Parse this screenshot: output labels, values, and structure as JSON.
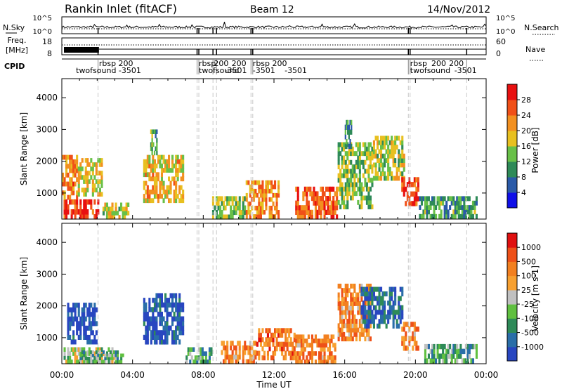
{
  "header": {
    "station": "Rankin Inlet (fitACF)",
    "beam": "Beam 12",
    "date": "14/Nov/2012"
  },
  "strip": {
    "nsky_label": "N.Sky",
    "nsearch_label": "N.Search",
    "freq_label": "Freq.",
    "freq_unit": "[MHz]",
    "nave_label": "Nave",
    "cpid_label": "CPID",
    "left_ticks_top": [
      "10^5",
      "10^0"
    ],
    "right_ticks_top": [
      "10^5",
      "10^0"
    ],
    "freq_ticks": [
      "18",
      "8"
    ],
    "nave_ticks": [
      "60",
      "0"
    ],
    "cpid_texts": [
      {
        "t": 2.1,
        "row": 0,
        "text": "rbsp 200"
      },
      {
        "t": 0.8,
        "row": 1,
        "text": "twofsound -3501"
      },
      {
        "t": 7.75,
        "row": 0,
        "text": "rbsp"
      },
      {
        "t": 8.6,
        "row": 0,
        "text": "200"
      },
      {
        "t": 9.6,
        "row": 0,
        "text": "200"
      },
      {
        "t": 10.8,
        "row": 0,
        "text": "rbsp 200"
      },
      {
        "t": 7.75,
        "row": 1,
        "text": "twofsound"
      },
      {
        "t": 9.2,
        "row": 1,
        "text": "-3501"
      },
      {
        "t": 10.8,
        "row": 1,
        "text": "-3501"
      },
      {
        "t": 12.6,
        "row": 1,
        "text": "-3501"
      },
      {
        "t": 19.7,
        "row": 0,
        "text": "rbsp"
      },
      {
        "t": 20.9,
        "row": 0,
        "text": "200"
      },
      {
        "t": 21.9,
        "row": 0,
        "text": "200"
      },
      {
        "t": 19.7,
        "row": 1,
        "text": "twofsound"
      },
      {
        "t": 22.2,
        "row": 1,
        "text": "-3501"
      }
    ],
    "cpid_changes": [
      2.05,
      7.65,
      7.75,
      8.55,
      8.75,
      10.7,
      10.8,
      19.6,
      19.7,
      22.9
    ]
  },
  "chart_data": [
    {
      "type": "heatmap",
      "name": "power",
      "ylabel": "Slant Range [km]",
      "xlabel": "",
      "xlim": [
        0,
        24
      ],
      "ylim": [
        180,
        4600
      ],
      "yticks": [
        1000,
        2000,
        3000,
        4000
      ],
      "colorbar": {
        "label": "Power [dB]",
        "ticks": [
          4,
          8,
          12,
          16,
          20,
          24,
          28
        ],
        "colors": [
          "#1010e8",
          "#2a5aa8",
          "#2e8a58",
          "#68c048",
          "#e8c020",
          "#f29020",
          "#f05018",
          "#e81010"
        ]
      },
      "echo_regions": [
        {
          "t0": 0.0,
          "t1": 2.1,
          "r0": 180,
          "r1": 800,
          "level": 0.88
        },
        {
          "t0": 0.0,
          "t1": 0.9,
          "r0": 800,
          "r1": 2200,
          "level": 0.72
        },
        {
          "t0": 0.9,
          "t1": 2.3,
          "r0": 900,
          "r1": 2100,
          "level": 0.55
        },
        {
          "t0": 2.3,
          "t1": 3.8,
          "r0": 180,
          "r1": 700,
          "level": 0.5
        },
        {
          "t0": 4.6,
          "t1": 6.9,
          "r0": 700,
          "r1": 2200,
          "level": 0.62
        },
        {
          "t0": 5.0,
          "t1": 5.4,
          "r0": 2200,
          "r1": 3000,
          "level": 0.35
        },
        {
          "t0": 8.5,
          "t1": 10.4,
          "r0": 180,
          "r1": 900,
          "level": 0.45
        },
        {
          "t0": 10.4,
          "t1": 12.3,
          "r0": 200,
          "r1": 1400,
          "level": 0.7
        },
        {
          "t0": 13.2,
          "t1": 15.6,
          "r0": 180,
          "r1": 1200,
          "level": 0.8
        },
        {
          "t0": 15.6,
          "t1": 17.6,
          "r0": 500,
          "r1": 2600,
          "level": 0.45
        },
        {
          "t0": 16.0,
          "t1": 16.4,
          "r0": 2400,
          "r1": 3300,
          "level": 0.3
        },
        {
          "t0": 17.6,
          "t1": 19.4,
          "r0": 1400,
          "r1": 2800,
          "level": 0.5
        },
        {
          "t0": 19.2,
          "t1": 20.2,
          "r0": 600,
          "r1": 1500,
          "level": 0.85
        },
        {
          "t0": 20.2,
          "t1": 23.5,
          "r0": 200,
          "r1": 900,
          "level": 0.35
        }
      ]
    },
    {
      "type": "heatmap",
      "name": "velocity",
      "ylabel": "Slant Range [km]",
      "xlabel": "Time UT",
      "xlim": [
        0,
        24
      ],
      "ylim": [
        180,
        4600
      ],
      "yticks": [
        1000,
        2000,
        3000,
        4000
      ],
      "xticks": [
        "00:00",
        "04:00",
        "08:00",
        "12:00",
        "16:00",
        "20:00",
        "00:00"
      ],
      "colorbar": {
        "label": "Velocity [m s-1]",
        "ticks": [
          1000,
          500,
          100,
          25,
          -25,
          -100,
          -500,
          -1000
        ],
        "colors": [
          "#2846c0",
          "#2a6ea8",
          "#2e8a58",
          "#60c040",
          "#c0c0c0",
          "#f7a030",
          "#f28020",
          "#ee5018",
          "#e01010"
        ]
      },
      "echo_regions": [
        {
          "t0": 0.3,
          "t1": 2.0,
          "r0": 800,
          "r1": 2100,
          "level": 0.05
        },
        {
          "t0": 0.0,
          "t1": 3.0,
          "r0": 180,
          "r1": 700,
          "level": 0.45
        },
        {
          "t0": 1.0,
          "t1": 3.5,
          "r0": 200,
          "r1": 600,
          "level": 0.35
        },
        {
          "t0": 4.6,
          "t1": 6.9,
          "r0": 800,
          "r1": 2400,
          "level": 0.08
        },
        {
          "t0": 7.0,
          "t1": 8.5,
          "r0": 180,
          "r1": 700,
          "level": 0.3
        },
        {
          "t0": 9.0,
          "t1": 11.0,
          "r0": 180,
          "r1": 900,
          "level": 0.7
        },
        {
          "t0": 11.0,
          "t1": 13.2,
          "r0": 300,
          "r1": 1300,
          "level": 0.75
        },
        {
          "t0": 13.2,
          "t1": 15.5,
          "r0": 180,
          "r1": 1100,
          "level": 0.72
        },
        {
          "t0": 15.6,
          "t1": 17.5,
          "r0": 900,
          "r1": 2700,
          "level": 0.7
        },
        {
          "t0": 16.9,
          "t1": 19.3,
          "r0": 1300,
          "r1": 2600,
          "level": 0.15
        },
        {
          "t0": 19.2,
          "t1": 20.2,
          "r0": 600,
          "r1": 1500,
          "level": 0.72
        },
        {
          "t0": 20.5,
          "t1": 23.5,
          "r0": 200,
          "r1": 800,
          "level": 0.35
        }
      ]
    }
  ]
}
